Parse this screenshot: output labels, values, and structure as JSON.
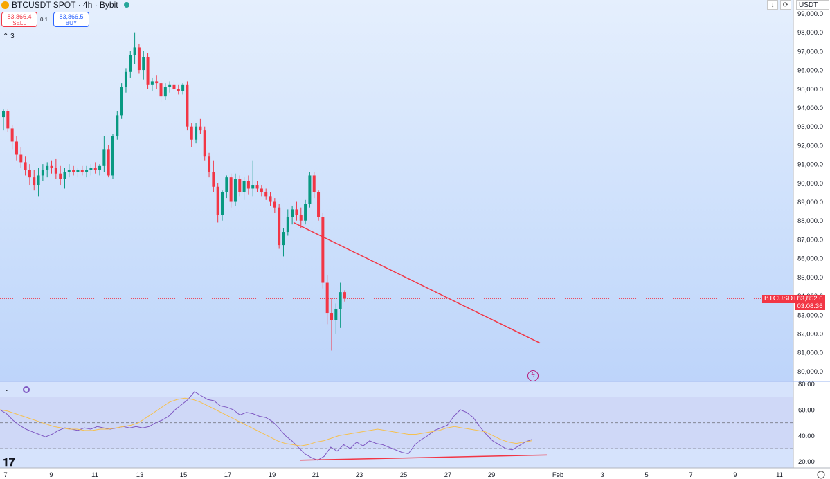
{
  "header": {
    "title": "BTCUSDT SPOT · 4h · Bybit"
  },
  "trade": {
    "sell_price": "83,866.4",
    "sell_label": "SELL",
    "spread": "0.1",
    "buy_price": "83,866.5",
    "buy_label": "BUY"
  },
  "indicator_count": "3",
  "currency": "USDT",
  "last": {
    "symbol": "BTCUSDT",
    "price": "83,852.6",
    "countdown": "03:08:36"
  },
  "icons": [
    "download-icon",
    "refresh-icon",
    "lightning-icon",
    "tradingview-logo-icon",
    "settings-icon"
  ],
  "colors": {
    "up": "#089981",
    "down": "#f23645",
    "trendline": "#f23645",
    "rsi": "#7e57c2",
    "rsi_ma": "#f5c04f"
  },
  "chart_data": [
    {
      "type": "candlestick",
      "title": "BTCUSDT SPOT · 4h · Bybit",
      "y_ticks": [
        "98,000.0",
        "97,000.0",
        "96,000.0",
        "95,000.0",
        "94,000.0",
        "93,000.0",
        "92,000.0",
        "91,000.0",
        "90,000.0",
        "89,000.0",
        "88,000.0",
        "87,000.0",
        "86,000.0",
        "85,000.0",
        "84,000.0",
        "83,000.0",
        "82,000.0",
        "81,000.0",
        "80,000.0"
      ],
      "y_top_tick": "99,000.0",
      "ylim": [
        79500,
        99200
      ],
      "x_ticks": [
        "7",
        "9",
        "11",
        "13",
        "15",
        "17",
        "19",
        "21",
        "23",
        "25",
        "27",
        "29",
        "Feb",
        "3",
        "5",
        "7",
        "9",
        "11"
      ],
      "x_unit_note": "date labels (January -> February)",
      "candles_ohlc": [
        [
          93500,
          93900,
          92800,
          93800
        ],
        [
          93800,
          93900,
          92700,
          92900
        ],
        [
          92900,
          93100,
          91800,
          92200
        ],
        [
          92200,
          92500,
          91200,
          91500
        ],
        [
          91500,
          91900,
          90800,
          91100
        ],
        [
          91100,
          91400,
          90400,
          90700
        ],
        [
          90700,
          91000,
          89900,
          90300
        ],
        [
          90300,
          90700,
          89600,
          89900
        ],
        [
          89900,
          90800,
          89300,
          90400
        ],
        [
          90400,
          91000,
          90100,
          90700
        ],
        [
          90700,
          91100,
          90300,
          90900
        ],
        [
          90900,
          91200,
          90500,
          90800
        ],
        [
          90800,
          91300,
          90200,
          90500
        ],
        [
          90500,
          90900,
          89900,
          90200
        ],
        [
          90200,
          90800,
          89700,
          90600
        ],
        [
          90600,
          91000,
          90300,
          90700
        ],
        [
          90700,
          90900,
          90400,
          90600
        ],
        [
          90600,
          90800,
          90300,
          90700
        ],
        [
          90700,
          90900,
          90400,
          90600
        ],
        [
          90600,
          90900,
          90300,
          90700
        ],
        [
          90700,
          91000,
          90400,
          90800
        ],
        [
          90800,
          91100,
          90500,
          90700
        ],
        [
          90700,
          91000,
          90400,
          90900
        ],
        [
          90900,
          92500,
          90600,
          91800
        ],
        [
          91800,
          92000,
          90300,
          90400
        ],
        [
          90400,
          92600,
          90200,
          92500
        ],
        [
          92500,
          93800,
          92300,
          93600
        ],
        [
          93600,
          95300,
          93400,
          95100
        ],
        [
          95100,
          96100,
          94800,
          95900
        ],
        [
          95900,
          97000,
          95600,
          96800
        ],
        [
          96800,
          98000,
          96300,
          97200
        ],
        [
          97200,
          97400,
          95800,
          96000
        ],
        [
          96000,
          97000,
          95500,
          96700
        ],
        [
          96700,
          96900,
          95000,
          95200
        ],
        [
          95200,
          95600,
          94900,
          95400
        ],
        [
          95400,
          95700,
          95000,
          95300
        ],
        [
          95300,
          95500,
          94300,
          94600
        ],
        [
          94600,
          95300,
          94400,
          95100
        ],
        [
          95100,
          95400,
          94800,
          95200
        ],
        [
          95200,
          95500,
          94900,
          95000
        ],
        [
          95000,
          95200,
          94700,
          94900
        ],
        [
          94900,
          95300,
          94700,
          95200
        ],
        [
          95200,
          95400,
          92800,
          93000
        ],
        [
          93000,
          93200,
          91900,
          92300
        ],
        [
          92300,
          93200,
          92100,
          93000
        ],
        [
          93000,
          93400,
          92600,
          92800
        ],
        [
          92800,
          93000,
          91200,
          91400
        ],
        [
          91400,
          91600,
          90300,
          90600
        ],
        [
          90600,
          91200,
          89500,
          89800
        ],
        [
          89800,
          90000,
          87900,
          88300
        ],
        [
          88300,
          89600,
          88000,
          89500
        ],
        [
          89500,
          90400,
          89200,
          90300
        ],
        [
          90300,
          90500,
          88700,
          89000
        ],
        [
          89000,
          90500,
          88800,
          90200
        ],
        [
          90200,
          90400,
          89300,
          89500
        ],
        [
          89500,
          90300,
          89100,
          90100
        ],
        [
          90100,
          90400,
          89400,
          89700
        ],
        [
          89700,
          91200,
          89300,
          89900
        ],
        [
          89900,
          90100,
          89500,
          89700
        ],
        [
          89700,
          89900,
          89300,
          89500
        ],
        [
          89500,
          89700,
          89100,
          89300
        ],
        [
          89300,
          89500,
          88800,
          89000
        ],
        [
          89000,
          89200,
          88400,
          88700
        ],
        [
          88700,
          88900,
          86500,
          86700
        ],
        [
          86700,
          87600,
          86100,
          87400
        ],
        [
          87400,
          88600,
          87200,
          88200
        ],
        [
          88200,
          88800,
          87800,
          88600
        ],
        [
          88600,
          89000,
          88000,
          88300
        ],
        [
          88300,
          88700,
          87600,
          88000
        ],
        [
          88000,
          89100,
          87800,
          88900
        ],
        [
          88900,
          90600,
          88700,
          90400
        ],
        [
          90400,
          90600,
          89200,
          89500
        ],
        [
          89500,
          89600,
          88000,
          88200
        ],
        [
          88200,
          88400,
          84400,
          84700
        ],
        [
          84700,
          85100,
          82500,
          83100
        ],
        [
          83100,
          83900,
          81100,
          82700
        ],
        [
          82700,
          83600,
          82000,
          83300
        ],
        [
          83300,
          84700,
          82300,
          84200
        ],
        [
          84200,
          84300,
          83700,
          83853
        ]
      ],
      "trendline": {
        "from": [
          "Jan 20",
          87900
        ],
        "to": [
          "Jan 30",
          81500
        ]
      }
    },
    {
      "type": "line",
      "title": "RSI",
      "y_ticks": [
        "80.00",
        "60.00",
        "40.00",
        "20.00"
      ],
      "ylim": [
        15,
        82
      ],
      "bands": [
        70,
        50,
        30
      ],
      "series": [
        {
          "values": [
            60,
            57,
            52,
            48,
            45,
            43,
            41,
            39,
            41,
            44,
            46,
            45,
            44,
            46,
            45,
            47,
            46,
            45,
            46,
            47,
            46,
            47,
            46,
            47,
            50,
            52,
            55,
            60,
            64,
            68,
            74,
            71,
            68,
            67,
            63,
            62,
            60,
            56,
            58,
            57,
            55,
            54,
            51,
            46,
            40,
            36,
            31,
            26,
            23,
            21,
            24,
            31,
            28,
            33,
            30,
            35,
            32,
            36,
            34,
            33,
            31,
            29,
            27,
            26,
            33,
            37,
            40,
            44,
            46,
            48,
            55,
            60,
            58,
            54,
            47,
            41,
            36,
            33,
            30,
            29,
            32,
            35,
            37
          ]
        },
        {
          "values": [
            60,
            59,
            57,
            55,
            53,
            51,
            49,
            47,
            46,
            45,
            45,
            44,
            44,
            45,
            45,
            46,
            47,
            48,
            50,
            54,
            58,
            62,
            66,
            68,
            69,
            68,
            66,
            63,
            60,
            57,
            54,
            51,
            48,
            45,
            42,
            39,
            36,
            34,
            33,
            32,
            33,
            35,
            36,
            38,
            40,
            41,
            42,
            43,
            44,
            45,
            44,
            43,
            42,
            41,
            41,
            42,
            43,
            44,
            46,
            47,
            46,
            45,
            44,
            43,
            40,
            37,
            35,
            34,
            35,
            36
          ]
        }
      ],
      "divergence_line": {
        "from": [
          "Jan 20",
          21
        ],
        "to": [
          "Jan 30",
          25
        ]
      }
    }
  ]
}
